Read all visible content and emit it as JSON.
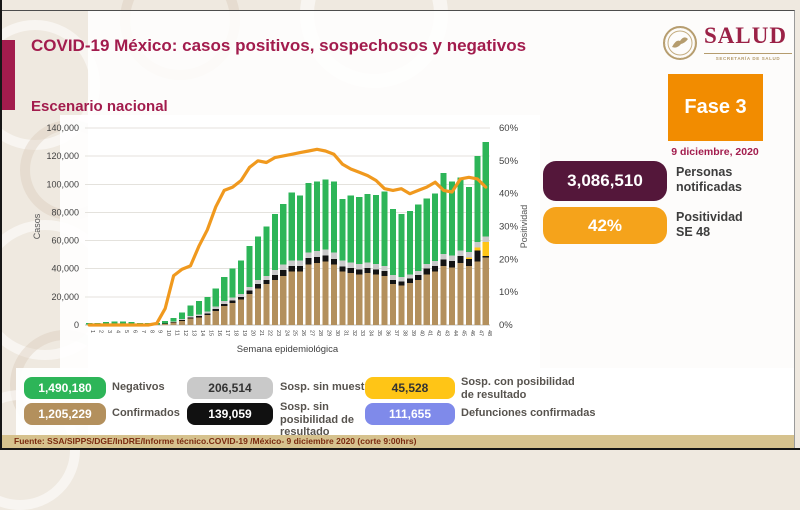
{
  "header": {
    "title": "COVID-19 México: casos positivos, sospechosos y negativos",
    "subtitle": "Escenario nacional",
    "logo_title": "SALUD",
    "logo_subtitle": "SECRETARÍA DE SALUD"
  },
  "phase": {
    "label": "Fase 3",
    "date": "9 diciembre, 2020"
  },
  "stats": [
    {
      "value": "3,086,510",
      "label": "Personas notificadas",
      "color": "#54173a",
      "text_color": "#ffffff"
    },
    {
      "value": "42%",
      "label": "Positividad SE 48",
      "color": "#f5a31b",
      "text_color": "#ffffff"
    }
  ],
  "legend": [
    {
      "value": "1,490,180",
      "label": "Negativos",
      "color": "#2db558",
      "text_color": "#ffffff"
    },
    {
      "value": "206,514",
      "label": "Sosp. sin muestra",
      "color": "#c9c9c9",
      "text_color": "#333333"
    },
    {
      "value": "45,528",
      "label": "Sosp. con posibilidad de resultado",
      "color": "#ffc516",
      "text_color": "#333333"
    },
    {
      "value": "1,205,229",
      "label": "Confirmados",
      "color": "#b3905d",
      "text_color": "#ffffff"
    },
    {
      "value": "139,059",
      "label": "Sosp. sin posibilidad de resultado",
      "color": "#111111",
      "text_color": "#ffffff"
    },
    {
      "value": "111,655",
      "label": "Defunciones confirmadas",
      "color": "#7f8aea",
      "text_color": "#ffffff"
    }
  ],
  "footer": "Fuente: SSA/SIPPS/DGE/InDRE/Informe técnico.COVID-19 /México- 9 diciembre 2020 (corte 9:00hrs)",
  "chart_data": {
    "type": "bar",
    "subtype": "stacked-bars-with-line",
    "title": "Escenario nacional",
    "xlabel": "Semana epidemiológica",
    "y_left": {
      "label": "Casos",
      "min": 0,
      "max": 140000,
      "step": 20000
    },
    "y_right": {
      "label": "Positividad",
      "min": 0,
      "max": 60,
      "step": 10,
      "suffix": "%"
    },
    "grid": true,
    "weeks": [
      1,
      2,
      3,
      4,
      5,
      6,
      7,
      8,
      9,
      10,
      11,
      12,
      13,
      14,
      15,
      16,
      17,
      18,
      19,
      20,
      21,
      22,
      23,
      24,
      25,
      26,
      27,
      28,
      29,
      30,
      31,
      32,
      33,
      34,
      35,
      36,
      37,
      38,
      39,
      40,
      41,
      42,
      43,
      44,
      45,
      46,
      47,
      48
    ],
    "series": [
      {
        "name": "Confirmados",
        "color": "#b3905d",
        "values": [
          100,
          100,
          150,
          200,
          200,
          200,
          200,
          200,
          300,
          800,
          1800,
          3000,
          4500,
          5500,
          7000,
          10000,
          13500,
          15500,
          18000,
          22000,
          26000,
          29000,
          32000,
          35000,
          38000,
          38000,
          43000,
          44000,
          45000,
          43000,
          38000,
          37000,
          36000,
          37000,
          36000,
          35000,
          29000,
          28000,
          30000,
          32000,
          36000,
          38000,
          42000,
          41000,
          44000,
          42000,
          45000,
          48000
        ]
      },
      {
        "name": "Sosp. sin posibilidad de resultado",
        "color": "#141414",
        "values": [
          0,
          0,
          0,
          0,
          0,
          0,
          0,
          0,
          0,
          100,
          300,
          500,
          1000,
          1000,
          1000,
          1500,
          1500,
          2000,
          2000,
          2500,
          3000,
          3000,
          3500,
          4000,
          4000,
          4000,
          4500,
          4500,
          4500,
          4000,
          3500,
          3500,
          3500,
          3500,
          3500,
          3500,
          3000,
          3000,
          3000,
          3500,
          4000,
          4000,
          4500,
          4500,
          5000,
          5000,
          8000,
          1000
        ]
      },
      {
        "name": "Sosp. con posibilidad de resultado",
        "color": "#ffc516",
        "values": [
          0,
          0,
          0,
          0,
          0,
          0,
          0,
          0,
          0,
          0,
          0,
          0,
          0,
          0,
          0,
          0,
          0,
          0,
          0,
          0,
          0,
          0,
          0,
          0,
          0,
          0,
          0,
          0,
          0,
          0,
          0,
          0,
          0,
          0,
          0,
          0,
          0,
          0,
          0,
          0,
          0,
          0,
          0,
          0,
          0,
          1000,
          2000,
          10000
        ]
      },
      {
        "name": "Sosp. sin muestra",
        "color": "#c9c9c9",
        "values": [
          100,
          100,
          100,
          100,
          100,
          100,
          100,
          100,
          100,
          300,
          500,
          700,
          1000,
          1000,
          1500,
          1500,
          2000,
          2000,
          2000,
          2500,
          3000,
          3000,
          3500,
          4000,
          4000,
          4000,
          4000,
          4000,
          4000,
          4500,
          4500,
          4000,
          4000,
          4000,
          4000,
          3500,
          3500,
          3000,
          3000,
          3000,
          3500,
          3500,
          4000,
          4000,
          4000,
          4000,
          4000,
          4000
        ]
      },
      {
        "name": "Negativos",
        "color": "#2db558",
        "values": [
          1300,
          1300,
          1750,
          2200,
          2200,
          1700,
          1200,
          1200,
          1100,
          1800,
          2400,
          4800,
          7500,
          9500,
          10500,
          13000,
          17000,
          20500,
          24000,
          29000,
          31000,
          35000,
          40000,
          43000,
          48000,
          46000,
          49500,
          49500,
          50000,
          50500,
          43500,
          47500,
          47500,
          48500,
          49000,
          53000,
          47000,
          45000,
          45000,
          47000,
          46500,
          48000,
          57500,
          52500,
          52000,
          46000,
          61000,
          67000
        ]
      }
    ],
    "line": {
      "name": "Positividad",
      "color": "#f0991e",
      "axis": "right",
      "values": [
        0,
        0,
        0,
        0,
        0,
        0,
        0,
        0,
        0.5,
        5,
        15,
        17,
        18,
        24,
        29,
        36,
        41,
        42,
        44,
        48,
        50,
        49.5,
        51,
        51.5,
        52,
        52.5,
        53,
        53.5,
        53,
        52,
        49,
        47.5,
        46.5,
        45.5,
        44,
        41.5,
        41,
        41.5,
        40,
        41,
        42,
        43.5,
        41,
        40.5,
        44.5,
        45,
        44.5,
        42
      ]
    }
  }
}
